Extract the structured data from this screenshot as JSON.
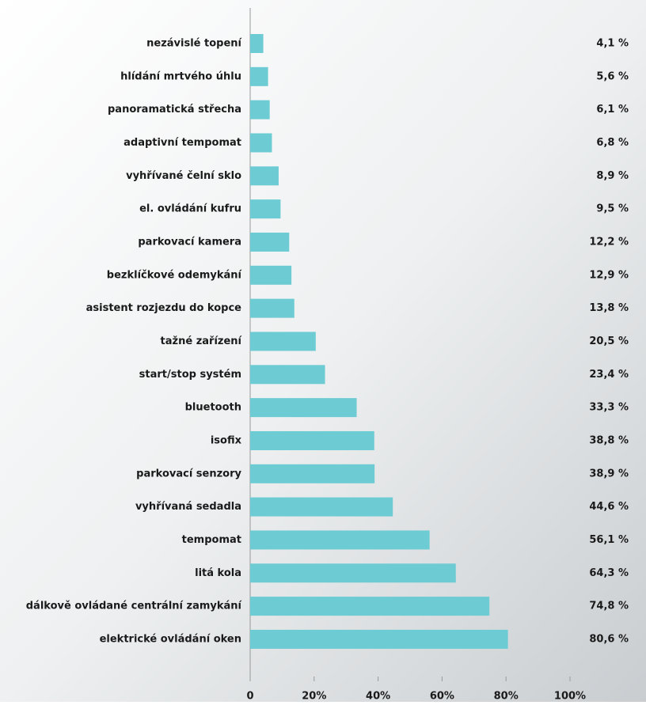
{
  "chart_data": {
    "type": "bar",
    "orientation": "horizontal",
    "color": "#6ccbd3",
    "categories": [
      "nezávislé topení",
      "hlídání mrtvého úhlu",
      "panoramatická střecha",
      "adaptivní tempomat",
      "vyhřívané čelní sklo",
      "el. ovládání kufru",
      "parkovací kamera",
      "bezklíčkové odemykání",
      "asistent rozjezdu do kopce",
      "tažné zařízení",
      "start/stop systém",
      "bluetooth",
      "isofix",
      "parkovací senzory",
      "vyhřívaná sedadla",
      "tempomat",
      "litá kola",
      "dálkově ovládané centrální zamykání",
      "elektrické ovládání oken"
    ],
    "values": [
      4.1,
      5.6,
      6.1,
      6.8,
      8.9,
      9.5,
      12.2,
      12.9,
      13.8,
      20.5,
      23.4,
      33.3,
      38.8,
      38.9,
      44.6,
      56.1,
      64.3,
      74.8,
      80.6
    ],
    "value_labels": [
      "4,1 %",
      "5,6 %",
      "6,1 %",
      "6,8 %",
      "8,9 %",
      "9,5 %",
      "12,2 %",
      "12,9 %",
      "13,8 %",
      "20,5 %",
      "23,4 %",
      "33,3 %",
      "38,8 %",
      "38,9 %",
      "44,6 %",
      "56,1 %",
      "64,3 %",
      "74,8 %",
      "80,6 %"
    ],
    "xlim": [
      0,
      100
    ],
    "xticks": [
      0,
      {
        "value": 20,
        "label": "20%"
      },
      {
        "value": 40,
        "label": "40%"
      },
      {
        "value": 60,
        "label": "60%"
      },
      {
        "value": 80,
        "label": "80%"
      },
      {
        "value": 100,
        "label": "100%"
      }
    ]
  }
}
